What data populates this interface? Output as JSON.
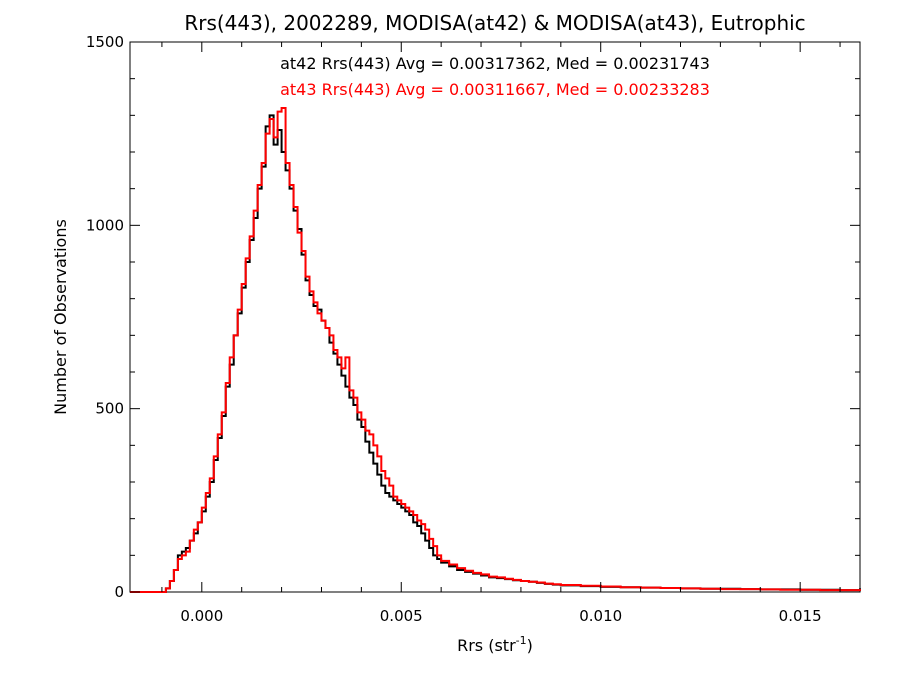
{
  "chart_data": {
    "type": "line",
    "title": "Rrs(443), 2002289, MODISA(at42) & MODISA(at43), Eutrophic",
    "xlabel": "Rrs (str",
    "xlabel_sup": "-1",
    "xlabel_end": ")",
    "ylabel": "Number of Observations",
    "xlim": [
      -0.0018,
      0.0165
    ],
    "ylim": [
      0,
      1500
    ],
    "xticks": [
      0.0,
      0.005,
      0.01,
      0.015
    ],
    "xtick_labels": [
      "0.000",
      "0.005",
      "0.010",
      "0.015"
    ],
    "yticks": [
      0,
      500,
      1000,
      1500
    ],
    "ytick_labels": [
      "0",
      "500",
      "1000",
      "1500"
    ],
    "grid": false,
    "annotations": [
      {
        "text": "at42 Rrs(443) Avg = 0.00317362, Med = 0.00231743",
        "color": "#000000"
      },
      {
        "text": "at43 Rrs(443) Avg = 0.00311667, Med = 0.00233283",
        "color": "#ff0000"
      }
    ],
    "series": [
      {
        "color": "#000000",
        "x": [
          -0.0018,
          -0.0011,
          -0.0009,
          -0.0008,
          -0.0007,
          -0.0006,
          -0.0005,
          -0.0004,
          -0.0003,
          -0.0002,
          -0.0001,
          0.0,
          0.0001,
          0.0002,
          0.0003,
          0.0004,
          0.0005,
          0.0006,
          0.0007,
          0.0008,
          0.0009,
          0.001,
          0.0011,
          0.0012,
          0.0013,
          0.0014,
          0.0015,
          0.0016,
          0.0017,
          0.0018,
          0.0019,
          0.002,
          0.0021,
          0.0022,
          0.0023,
          0.0024,
          0.0025,
          0.0026,
          0.0027,
          0.0028,
          0.0029,
          0.003,
          0.0031,
          0.0032,
          0.0033,
          0.0034,
          0.0035,
          0.0036,
          0.0037,
          0.0038,
          0.0039,
          0.004,
          0.0041,
          0.0042,
          0.0043,
          0.0044,
          0.0045,
          0.0046,
          0.0047,
          0.0048,
          0.0049,
          0.005,
          0.0051,
          0.0052,
          0.0053,
          0.0054,
          0.0055,
          0.0056,
          0.0057,
          0.0058,
          0.0059,
          0.006,
          0.0062,
          0.0064,
          0.0066,
          0.0068,
          0.007,
          0.0072,
          0.0074,
          0.0076,
          0.0078,
          0.008,
          0.0082,
          0.0084,
          0.0086,
          0.0088,
          0.009,
          0.0095,
          0.01,
          0.0105,
          0.011,
          0.0115,
          0.012,
          0.0125,
          0.013,
          0.0135,
          0.014,
          0.0145,
          0.015,
          0.0155,
          0.016,
          0.0165
        ],
        "y": [
          0,
          0,
          10,
          30,
          60,
          100,
          110,
          120,
          140,
          160,
          190,
          220,
          260,
          300,
          360,
          420,
          480,
          560,
          620,
          700,
          760,
          830,
          900,
          960,
          1020,
          1100,
          1160,
          1270,
          1300,
          1220,
          1260,
          1200,
          1150,
          1100,
          1040,
          990,
          920,
          850,
          810,
          780,
          770,
          740,
          720,
          680,
          650,
          620,
          590,
          560,
          530,
          510,
          470,
          450,
          410,
          380,
          350,
          320,
          290,
          270,
          260,
          250,
          240,
          230,
          220,
          210,
          190,
          180,
          160,
          140,
          120,
          100,
          90,
          80,
          70,
          60,
          55,
          50,
          45,
          40,
          38,
          35,
          32,
          30,
          28,
          25,
          22,
          20,
          18,
          16,
          14,
          13,
          12,
          11,
          10,
          9,
          9,
          8,
          7,
          7,
          6,
          6,
          5,
          10
        ]
      },
      {
        "color": "#ff0000",
        "x": [
          -0.0018,
          -0.0011,
          -0.0009,
          -0.0008,
          -0.0007,
          -0.0006,
          -0.0005,
          -0.0004,
          -0.0003,
          -0.0002,
          -0.0001,
          0.0,
          0.0001,
          0.0002,
          0.0003,
          0.0004,
          0.0005,
          0.0006,
          0.0007,
          0.0008,
          0.0009,
          0.001,
          0.0011,
          0.0012,
          0.0013,
          0.0014,
          0.0015,
          0.0016,
          0.0017,
          0.0018,
          0.0019,
          0.002,
          0.0021,
          0.0022,
          0.0023,
          0.0024,
          0.0025,
          0.0026,
          0.0027,
          0.0028,
          0.0029,
          0.003,
          0.0031,
          0.0032,
          0.0033,
          0.0034,
          0.0035,
          0.0036,
          0.0037,
          0.0038,
          0.0039,
          0.004,
          0.0041,
          0.0042,
          0.0043,
          0.0044,
          0.0045,
          0.0046,
          0.0047,
          0.0048,
          0.0049,
          0.005,
          0.0051,
          0.0052,
          0.0053,
          0.0054,
          0.0055,
          0.0056,
          0.0057,
          0.0058,
          0.0059,
          0.006,
          0.0062,
          0.0064,
          0.0066,
          0.0068,
          0.007,
          0.0072,
          0.0074,
          0.0076,
          0.0078,
          0.008,
          0.0082,
          0.0084,
          0.0086,
          0.0088,
          0.009,
          0.0095,
          0.01,
          0.0105,
          0.011,
          0.0115,
          0.012,
          0.0125,
          0.013,
          0.0135,
          0.014,
          0.0145,
          0.015,
          0.0155,
          0.016,
          0.0165
        ],
        "y": [
          0,
          0,
          10,
          30,
          60,
          90,
          100,
          110,
          140,
          170,
          190,
          230,
          270,
          310,
          370,
          430,
          490,
          570,
          640,
          700,
          770,
          840,
          910,
          970,
          1040,
          1110,
          1170,
          1250,
          1290,
          1240,
          1310,
          1320,
          1170,
          1110,
          1050,
          980,
          930,
          860,
          820,
          790,
          760,
          740,
          720,
          700,
          660,
          640,
          610,
          640,
          550,
          530,
          490,
          470,
          440,
          430,
          400,
          370,
          330,
          310,
          290,
          260,
          250,
          240,
          230,
          220,
          210,
          195,
          185,
          170,
          145,
          125,
          100,
          85,
          75,
          65,
          58,
          52,
          48,
          42,
          40,
          36,
          33,
          30,
          28,
          26,
          23,
          21,
          19,
          17,
          15,
          13,
          12,
          11,
          10,
          9,
          8,
          8,
          7,
          6,
          6,
          5,
          5,
          3
        ]
      }
    ]
  }
}
